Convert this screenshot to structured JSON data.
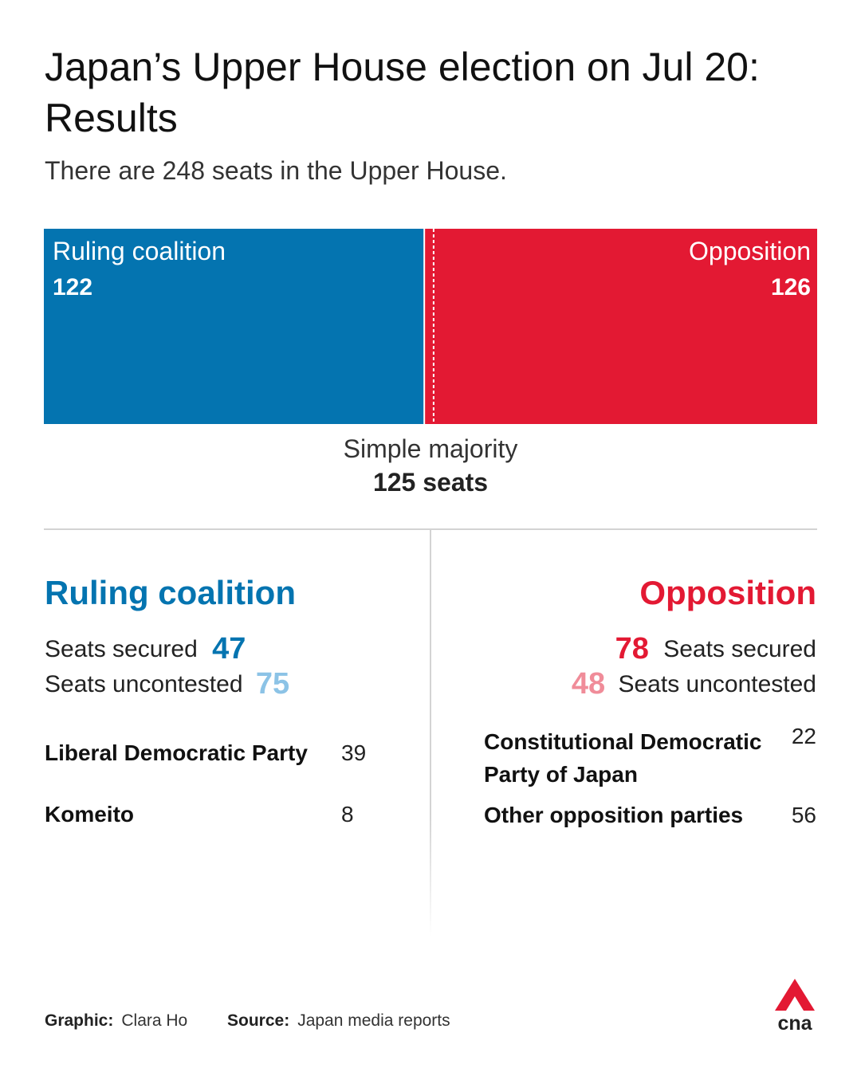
{
  "header": {
    "title": "Japan’s Upper House election on Jul 20: Results",
    "subtitle": "There are 248 seats in the Upper House."
  },
  "chart_data": {
    "type": "bar",
    "orientation": "stacked-horizontal",
    "total_seats": 248,
    "series": [
      {
        "name": "Ruling coalition",
        "value": 122,
        "color": "#0474b0"
      },
      {
        "name": "Opposition",
        "value": 126,
        "color": "#e31933"
      }
    ],
    "majority_line": {
      "label": "Simple majority",
      "value": 125,
      "value_label": "125 seats"
    }
  },
  "ruling": {
    "title": "Ruling coalition",
    "color": "#0474b0",
    "light_color": "#8cc3e6",
    "secured_label": "Seats secured",
    "secured_value": "47",
    "uncontested_label": "Seats uncontested",
    "uncontested_value": "75",
    "parties": [
      {
        "name": "Liberal Democratic Party",
        "seats": "39"
      },
      {
        "name": "Komeito",
        "seats": "8"
      }
    ]
  },
  "opposition": {
    "title": "Opposition",
    "color": "#e31933",
    "light_color": "#f08c99",
    "secured_label": "Seats secured",
    "secured_value": "78",
    "uncontested_label": "Seats uncontested",
    "uncontested_value": "48",
    "parties": [
      {
        "name_line1": "Constitutional Democratic",
        "name_line2": "Party of Japan",
        "seats": "22"
      },
      {
        "name": "Other opposition parties",
        "seats": "56"
      }
    ]
  },
  "footer": {
    "graphic_label": "Graphic:",
    "graphic_value": "Clara Ho",
    "source_label": "Source:",
    "source_value": "Japan media reports",
    "logo_text": "cna",
    "logo_color": "#e31933"
  }
}
